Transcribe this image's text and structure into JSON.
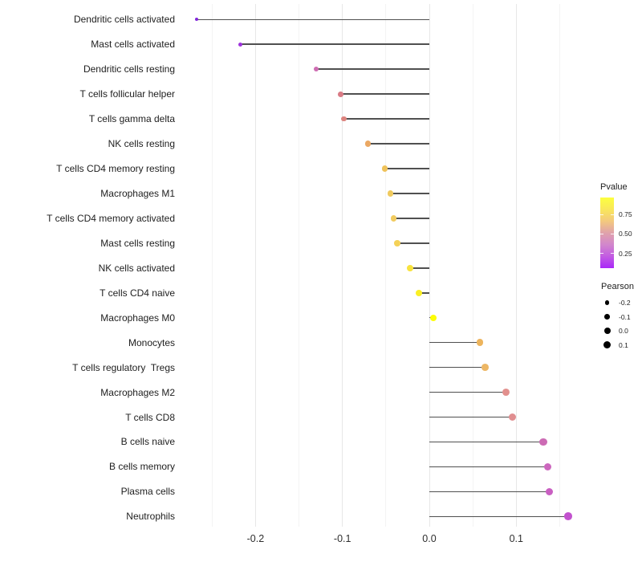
{
  "chart_data": {
    "type": "lollipop",
    "orientation": "horizontal",
    "title": "",
    "xlabel": "",
    "ylabel": "",
    "baseline": 0.0,
    "xlim": [
      -0.275,
      0.164
    ],
    "x_ticks": [
      -0.2,
      -0.1,
      0.0,
      0.1
    ],
    "x_tick_labels": [
      "-0.2",
      "-0.1",
      "0.0",
      "0.1"
    ],
    "x_minor_ticks": [
      -0.25,
      -0.15,
      -0.05,
      0.05,
      0.15
    ],
    "grid": "vertical major and minor gridlines only, no horizontal gridlines, no axis lines",
    "points": [
      {
        "label": "Dendritic cells activated",
        "pearson": -0.268,
        "color": "#8227DB"
      },
      {
        "label": "Mast cells activated",
        "pearson": -0.217,
        "color": "#9E33DC"
      },
      {
        "label": "Dendritic cells resting",
        "pearson": -0.13,
        "color": "#CE6DB2"
      },
      {
        "label": "T cells follicular helper",
        "pearson": -0.102,
        "color": "#D97B85"
      },
      {
        "label": "T cells gamma delta",
        "pearson": -0.098,
        "color": "#DD847F"
      },
      {
        "label": "NK cells resting",
        "pearson": -0.071,
        "color": "#EBA863"
      },
      {
        "label": "T cells CD4 memory resting",
        "pearson": -0.051,
        "color": "#EFC25A"
      },
      {
        "label": "Macrophages M1",
        "pearson": -0.045,
        "color": "#F0CA5E"
      },
      {
        "label": "T cells CD4 memory activated",
        "pearson": -0.041,
        "color": "#F1CB60"
      },
      {
        "label": "Mast cells resting",
        "pearson": -0.037,
        "color": "#F4D158"
      },
      {
        "label": "NK cells activated",
        "pearson": -0.022,
        "color": "#F8E33E"
      },
      {
        "label": "T cells CD4 naive",
        "pearson": -0.012,
        "color": "#FAEF25"
      },
      {
        "label": "Macrophages M0",
        "pearson": 0.005,
        "color": "#FDFD05"
      },
      {
        "label": "Monocytes",
        "pearson": 0.058,
        "color": "#EDB45C"
      },
      {
        "label": "T cells regulatory  Tregs",
        "pearson": 0.064,
        "color": "#EDB765"
      },
      {
        "label": "Macrophages M2",
        "pearson": 0.088,
        "color": "#E2908D"
      },
      {
        "label": "T cells CD8",
        "pearson": 0.096,
        "color": "#E08E90"
      },
      {
        "label": "B cells naive",
        "pearson": 0.131,
        "color": "#CC6BB4"
      },
      {
        "label": "B cells memory",
        "pearson": 0.136,
        "color": "#CC67BE"
      },
      {
        "label": "Plasma cells",
        "pearson": 0.138,
        "color": "#C95FC2"
      },
      {
        "label": "Neutrophils",
        "pearson": 0.16,
        "color": "#C252CE"
      }
    ]
  },
  "legends": {
    "pvalue": {
      "title": "Pvalue",
      "tick_labels": [
        "0.75",
        "0.50",
        "0.25"
      ],
      "tick_values": [
        0.75,
        0.5,
        0.25
      ],
      "gradient_stops": [
        "#FCFF3F",
        "#F9E75B",
        "#F3C97E",
        "#E0A2AB",
        "#D287CC",
        "#C25BE2",
        "#A928F8"
      ]
    },
    "pearson": {
      "title": "Pearson",
      "items": [
        {
          "label": "-0.2",
          "value": -0.2
        },
        {
          "label": "-0.1",
          "value": -0.1
        },
        {
          "label": "0.0",
          "value": 0.0
        },
        {
          "label": "0.1",
          "value": 0.1
        }
      ],
      "dot_color": "#000000"
    }
  },
  "colors": {
    "background": "#ffffff",
    "stem": "#505050",
    "grid_major": "#e7e7e7",
    "grid_minor": "#f3f3f3",
    "axis_text": "#2e2e2e",
    "y_label_text": "#1e1e1e"
  }
}
